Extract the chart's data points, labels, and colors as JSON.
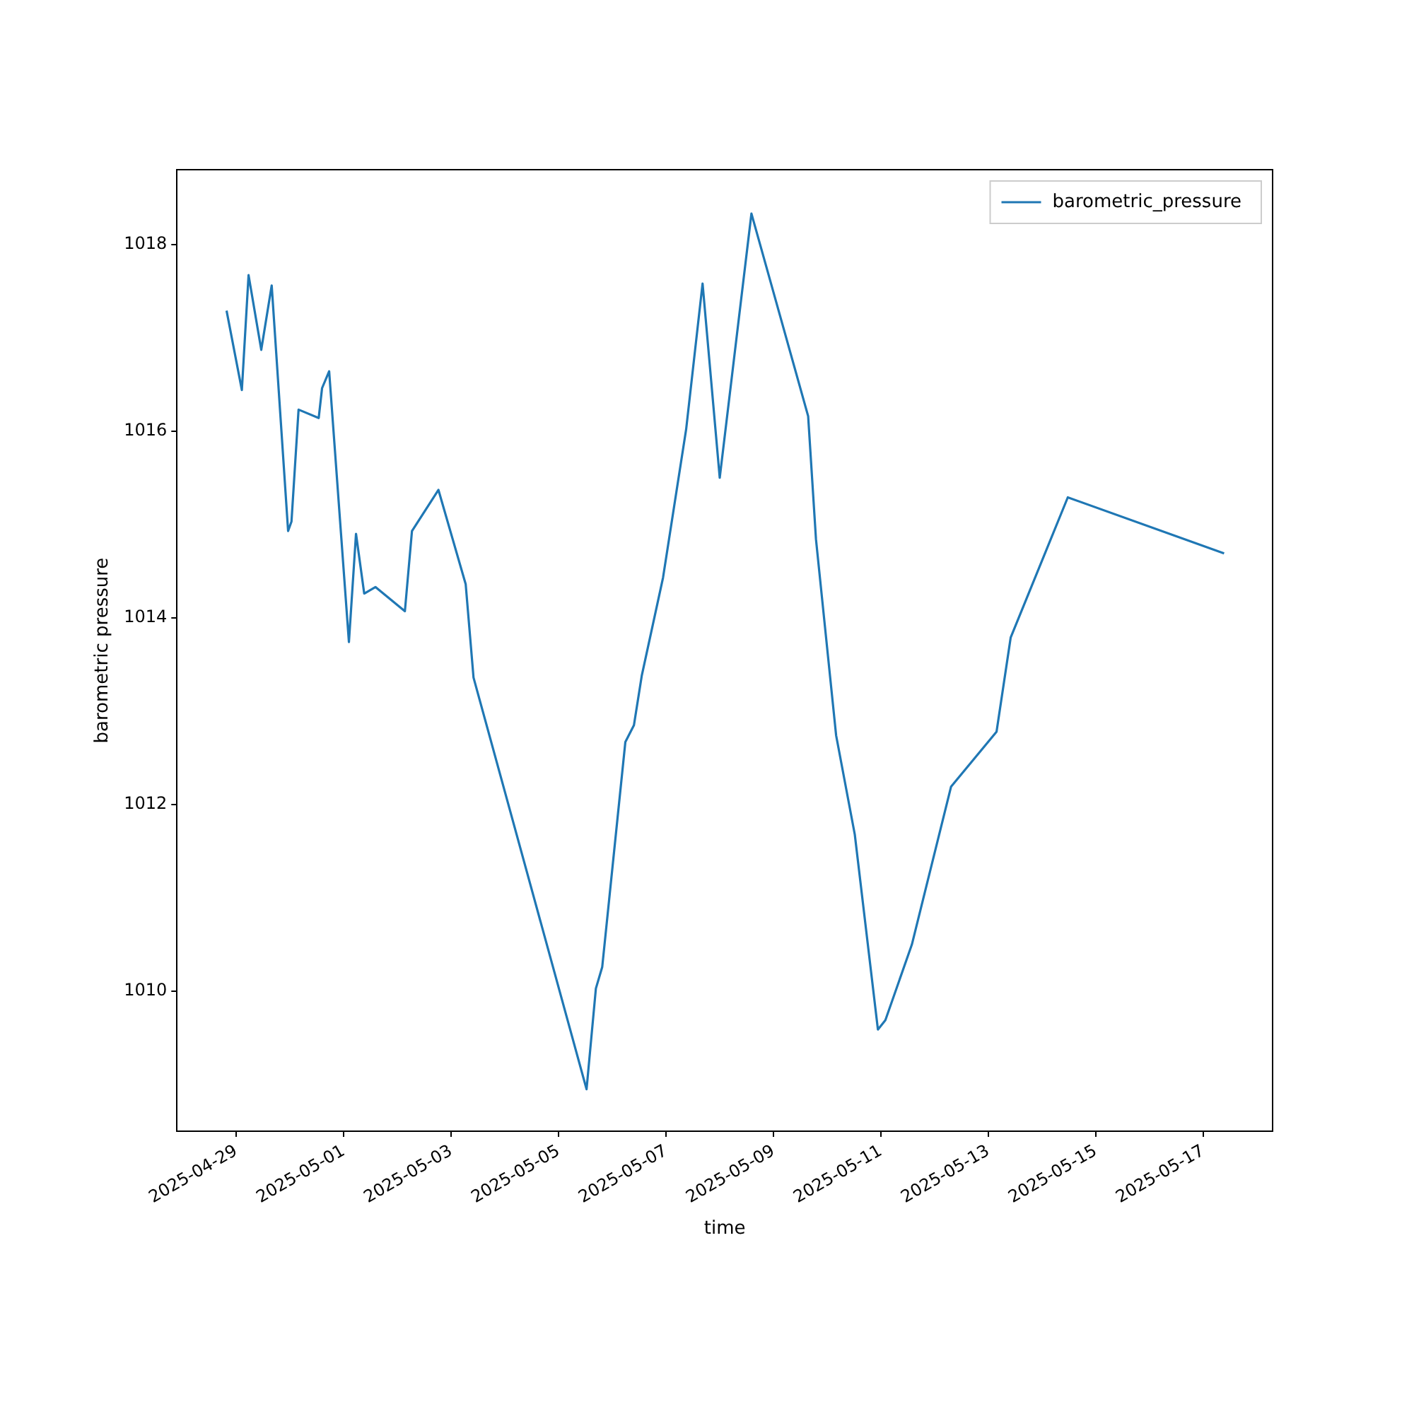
{
  "chart_data": {
    "type": "line",
    "xlabel": "time",
    "ylabel": "barometric pressure",
    "legend": "top right",
    "grid": false,
    "marker": "none",
    "line_style": "solid",
    "xlim": [
      "2025-04-27T21:30",
      "2025-05-18T07:00"
    ],
    "xticks": [
      "2025-04-29",
      "2025-05-01",
      "2025-05-03",
      "2025-05-05",
      "2025-05-07",
      "2025-05-09",
      "2025-05-11",
      "2025-05-13",
      "2025-05-15",
      "2025-05-17"
    ],
    "ylim": [
      1008.5,
      1018.8
    ],
    "yticks": [
      1010,
      1012,
      1014,
      1016,
      1018
    ],
    "series": [
      {
        "name": "barometric_pressure",
        "color": "#1f77b4",
        "x": [
          "2025-04-28T19:40",
          "2025-04-29T02:30",
          "2025-04-29T05:30",
          "2025-04-29T11:10",
          "2025-04-29T15:50",
          "2025-04-29T23:10",
          "2025-04-30T00:40",
          "2025-04-30T03:50",
          "2025-04-30T12:50",
          "2025-04-30T14:20",
          "2025-04-30T17:30",
          "2025-05-01T02:20",
          "2025-05-01T05:30",
          "2025-05-01T09:10",
          "2025-05-01T14:10",
          "2025-05-02T03:20",
          "2025-05-02T06:30",
          "2025-05-02T18:20",
          "2025-05-03T06:30",
          "2025-05-03T10:00",
          "2025-05-05T12:30",
          "2025-05-05T16:40",
          "2025-05-05T19:30",
          "2025-05-06T05:50",
          "2025-05-06T09:40",
          "2025-05-06T13:10",
          "2025-05-06T22:40",
          "2025-05-07T09:00",
          "2025-05-07T16:20",
          "2025-05-08T00:00",
          "2025-05-08T14:10",
          "2025-05-09T15:30",
          "2025-05-09T19:00",
          "2025-05-10T04:00",
          "2025-05-10T12:20",
          "2025-05-10T22:40",
          "2025-05-11T02:00",
          "2025-05-11T13:50",
          "2025-05-12T07:20",
          "2025-05-13T03:40",
          "2025-05-13T10:00",
          "2025-05-14T11:30",
          "2025-05-17T09:20"
        ],
        "values": [
          1017.29,
          1016.44,
          1017.67,
          1016.87,
          1017.56,
          1014.93,
          1015.03,
          1016.23,
          1016.14,
          1016.46,
          1016.64,
          1013.74,
          1014.9,
          1014.26,
          1014.33,
          1014.07,
          1014.93,
          1015.37,
          1014.36,
          1013.36,
          1008.95,
          1010.03,
          1010.26,
          1012.67,
          1012.85,
          1013.38,
          1014.43,
          1016.02,
          1017.58,
          1015.5,
          1018.33,
          1016.16,
          1014.84,
          1012.74,
          1011.68,
          1009.59,
          1009.69,
          1010.5,
          1012.19,
          1012.78,
          1013.79,
          1015.29,
          1014.69
        ]
      }
    ]
  }
}
